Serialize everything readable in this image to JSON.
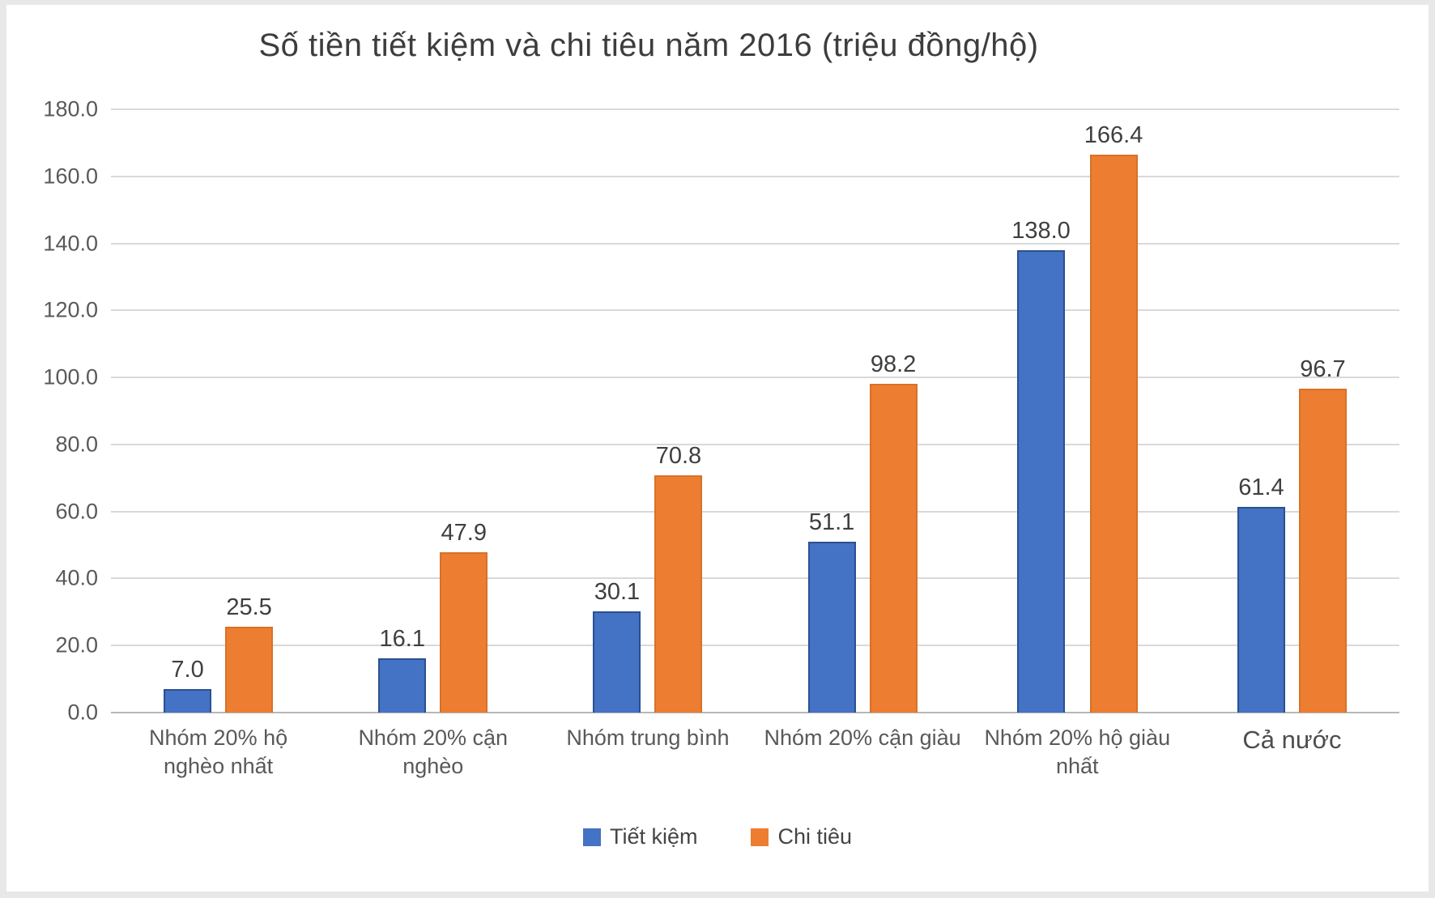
{
  "title": "Số tiền tiết kiệm và chi tiêu năm 2016 (triệu đồng/hộ)",
  "chart_data": {
    "type": "bar",
    "title": "Số tiền tiết kiệm và chi tiêu năm 2016 (triệu đồng/hộ)",
    "categories": [
      "Nhóm 20% hộ nghèo nhất",
      "Nhóm 20% cận nghèo",
      "Nhóm trung bình",
      "Nhóm 20% cận giàu",
      "Nhóm 20% hộ giàu nhất",
      "Cả nước"
    ],
    "series": [
      {
        "name": "Tiết kiệm",
        "color": "#4472C4",
        "values": [
          7.0,
          16.1,
          30.1,
          51.1,
          138.0,
          61.4
        ]
      },
      {
        "name": "Chi tiêu",
        "color": "#ED7D31",
        "values": [
          25.5,
          47.9,
          70.8,
          98.2,
          166.4,
          96.7
        ]
      }
    ],
    "ylim": [
      0,
      180
    ],
    "y_tick_step": 20,
    "y_tick_labels": [
      "0.0",
      "20.0",
      "40.0",
      "60.0",
      "80.0",
      "100.0",
      "120.0",
      "140.0",
      "160.0",
      "180.0"
    ],
    "grid": true,
    "data_labels": true,
    "legend_position": "bottom",
    "colors": {
      "grid": "#d9d9d9",
      "axis_line": "#b7b7b7",
      "axis_text": "#595959",
      "data_label_text": "#3f3f3f",
      "title_text": "#3d3d3d",
      "plot_background": "#ffffff",
      "page_background": "#e8e8e8"
    }
  }
}
